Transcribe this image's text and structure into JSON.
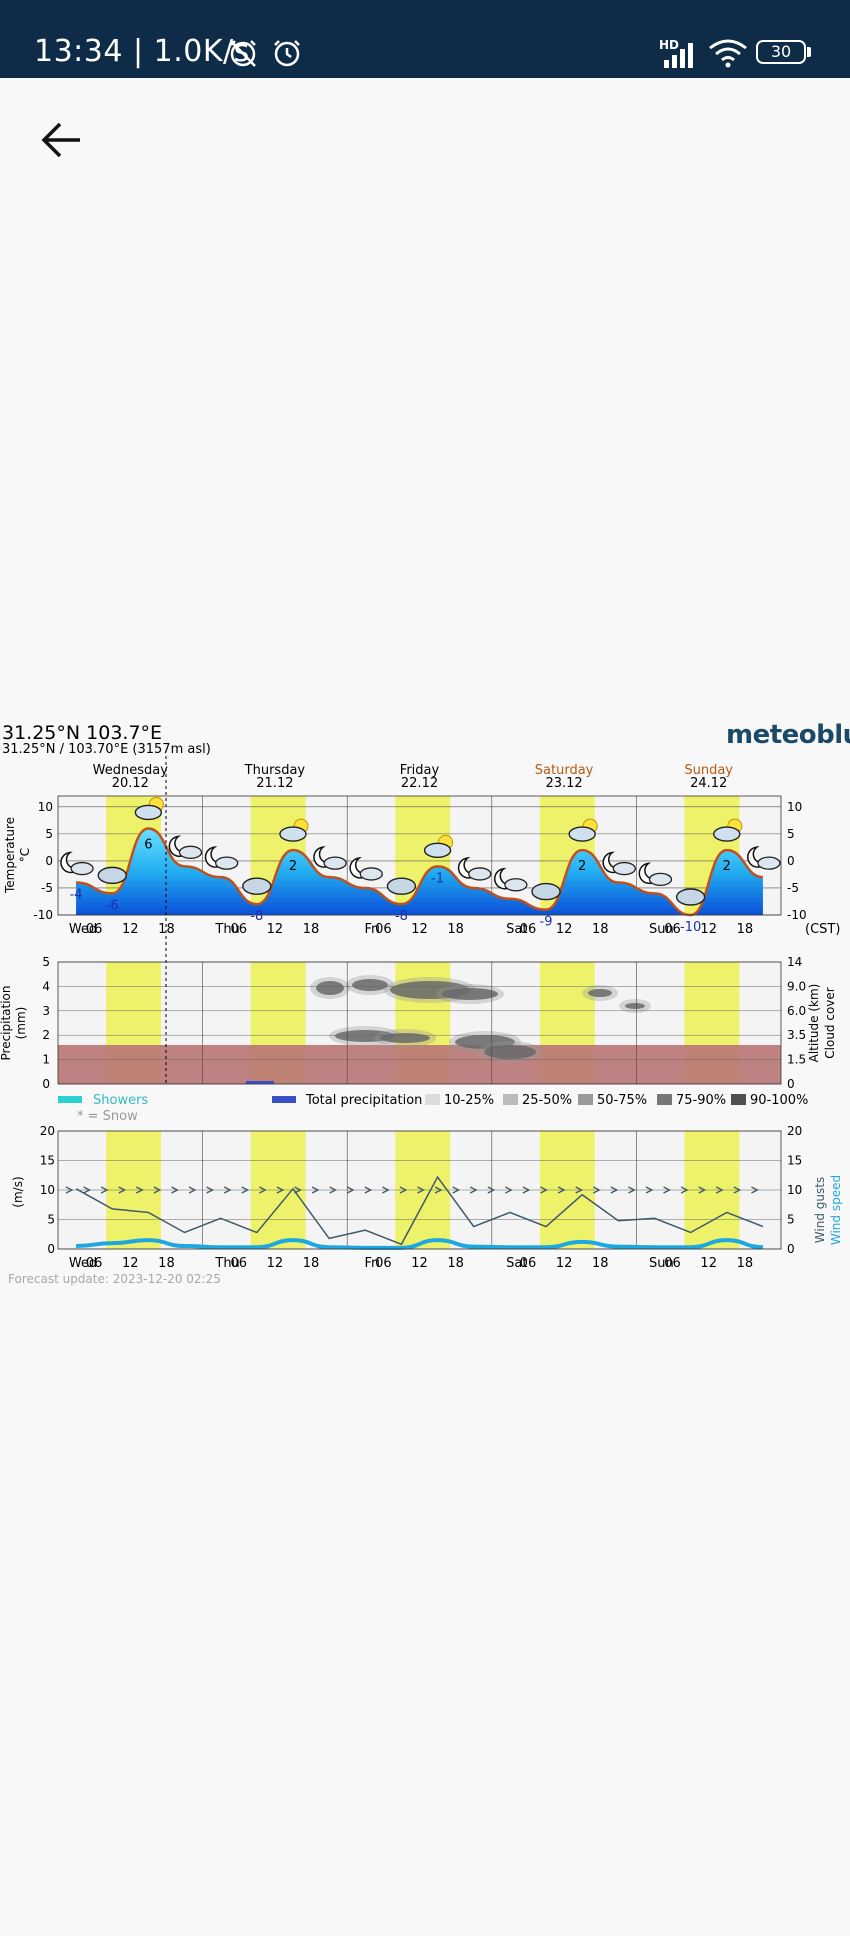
{
  "status_bar": {
    "time_speed": "13:34 | 1.0K/s",
    "network": "HD",
    "battery": "30"
  },
  "location": {
    "title": "31.25°N 103.7°E",
    "subtitle": "31.25°N / 103.70°E (3157m asl)"
  },
  "brand": "meteoblue",
  "days": [
    {
      "name": "Wednesday",
      "date": "20.12",
      "weekend": false
    },
    {
      "name": "Thursday",
      "date": "21.12",
      "weekend": false
    },
    {
      "name": "Friday",
      "date": "22.12",
      "weekend": false
    },
    {
      "name": "Saturday",
      "date": "23.12",
      "weekend": true
    },
    {
      "name": "Sunday",
      "date": "24.12",
      "weekend": true
    }
  ],
  "x_ticks": [
    "Wed",
    "06",
    "12",
    "18",
    "Thu",
    "06",
    "12",
    "18",
    "Fri",
    "06",
    "12",
    "18",
    "Sat",
    "06",
    "12",
    "18",
    "Sun",
    "06",
    "12",
    "18"
  ],
  "timezone_label": "(CST)",
  "temperature": {
    "axis_label": "Temperature",
    "unit": "°C",
    "ticks": [
      "10",
      "5",
      "0",
      "-5",
      "-10"
    ],
    "labels": [
      "-4",
      "-6",
      "6",
      "-8",
      "2",
      "-8",
      "-1",
      "-9",
      "2",
      "-10",
      "2"
    ]
  },
  "precipitation": {
    "axis_label": "Precipitation",
    "unit": "(mm)",
    "ticks": [
      "5",
      "4",
      "3",
      "2",
      "1",
      "0"
    ],
    "altitude_label": "Altitude (km)",
    "altitude_ticks": [
      "14",
      "9.0",
      "6.0",
      "3.5",
      "1.5",
      "0"
    ],
    "cloud_label": "Cloud cover"
  },
  "legend": {
    "showers": "Showers",
    "snow": "* = Snow",
    "total": "Total precipitation",
    "bins": [
      "10-25%",
      "25-50%",
      "50-75%",
      "75-90%",
      "90-100%"
    ],
    "bin_colors": [
      "#dcdcdc",
      "#bbbbbb",
      "#999999",
      "#777777",
      "#505050"
    ]
  },
  "wind": {
    "unit": "(m/s)",
    "ticks": [
      "20",
      "15",
      "10",
      "5",
      "0"
    ],
    "gusts_label": "Wind gusts",
    "speed_label": "Wind speed"
  },
  "forecast_update": "Forecast update: 2023-12-20 02:25",
  "chart_data": {
    "type": "line",
    "x": [
      "Wed 00",
      "Wed 06",
      "Wed 12",
      "Wed 18",
      "Thu 00",
      "Thu 06",
      "Thu 12",
      "Thu 18",
      "Fri 00",
      "Fri 06",
      "Fri 12",
      "Fri 18",
      "Sat 00",
      "Sat 06",
      "Sat 12",
      "Sat 18",
      "Sun 00",
      "Sun 06",
      "Sun 12",
      "Sun 18"
    ],
    "series": [
      {
        "name": "Temperature",
        "values": [
          -4,
          -6,
          6,
          -1,
          -3,
          -8,
          2,
          -3,
          -5,
          -8,
          -1,
          -5,
          -7,
          -9,
          2,
          -4,
          -6,
          -10,
          2,
          -3
        ]
      },
      {
        "name": "Wind gusts",
        "values": [
          9,
          8,
          5,
          4,
          4,
          4,
          9,
          3,
          2,
          2,
          11,
          5,
          5,
          5,
          8,
          6,
          4,
          4,
          5,
          5
        ]
      },
      {
        "name": "Wind speed",
        "values": [
          0.5,
          1,
          1.5,
          0.5,
          0.3,
          0.3,
          1.5,
          0.3,
          0.2,
          0.2,
          1.5,
          0.4,
          0.3,
          0.3,
          1.2,
          0.4,
          0.3,
          0.3,
          1.5,
          0.3
        ]
      }
    ],
    "ylim_temperature": [
      -10,
      12
    ],
    "ylim_precipitation": [
      0,
      5
    ],
    "ylim_wind": [
      0,
      20
    ]
  }
}
